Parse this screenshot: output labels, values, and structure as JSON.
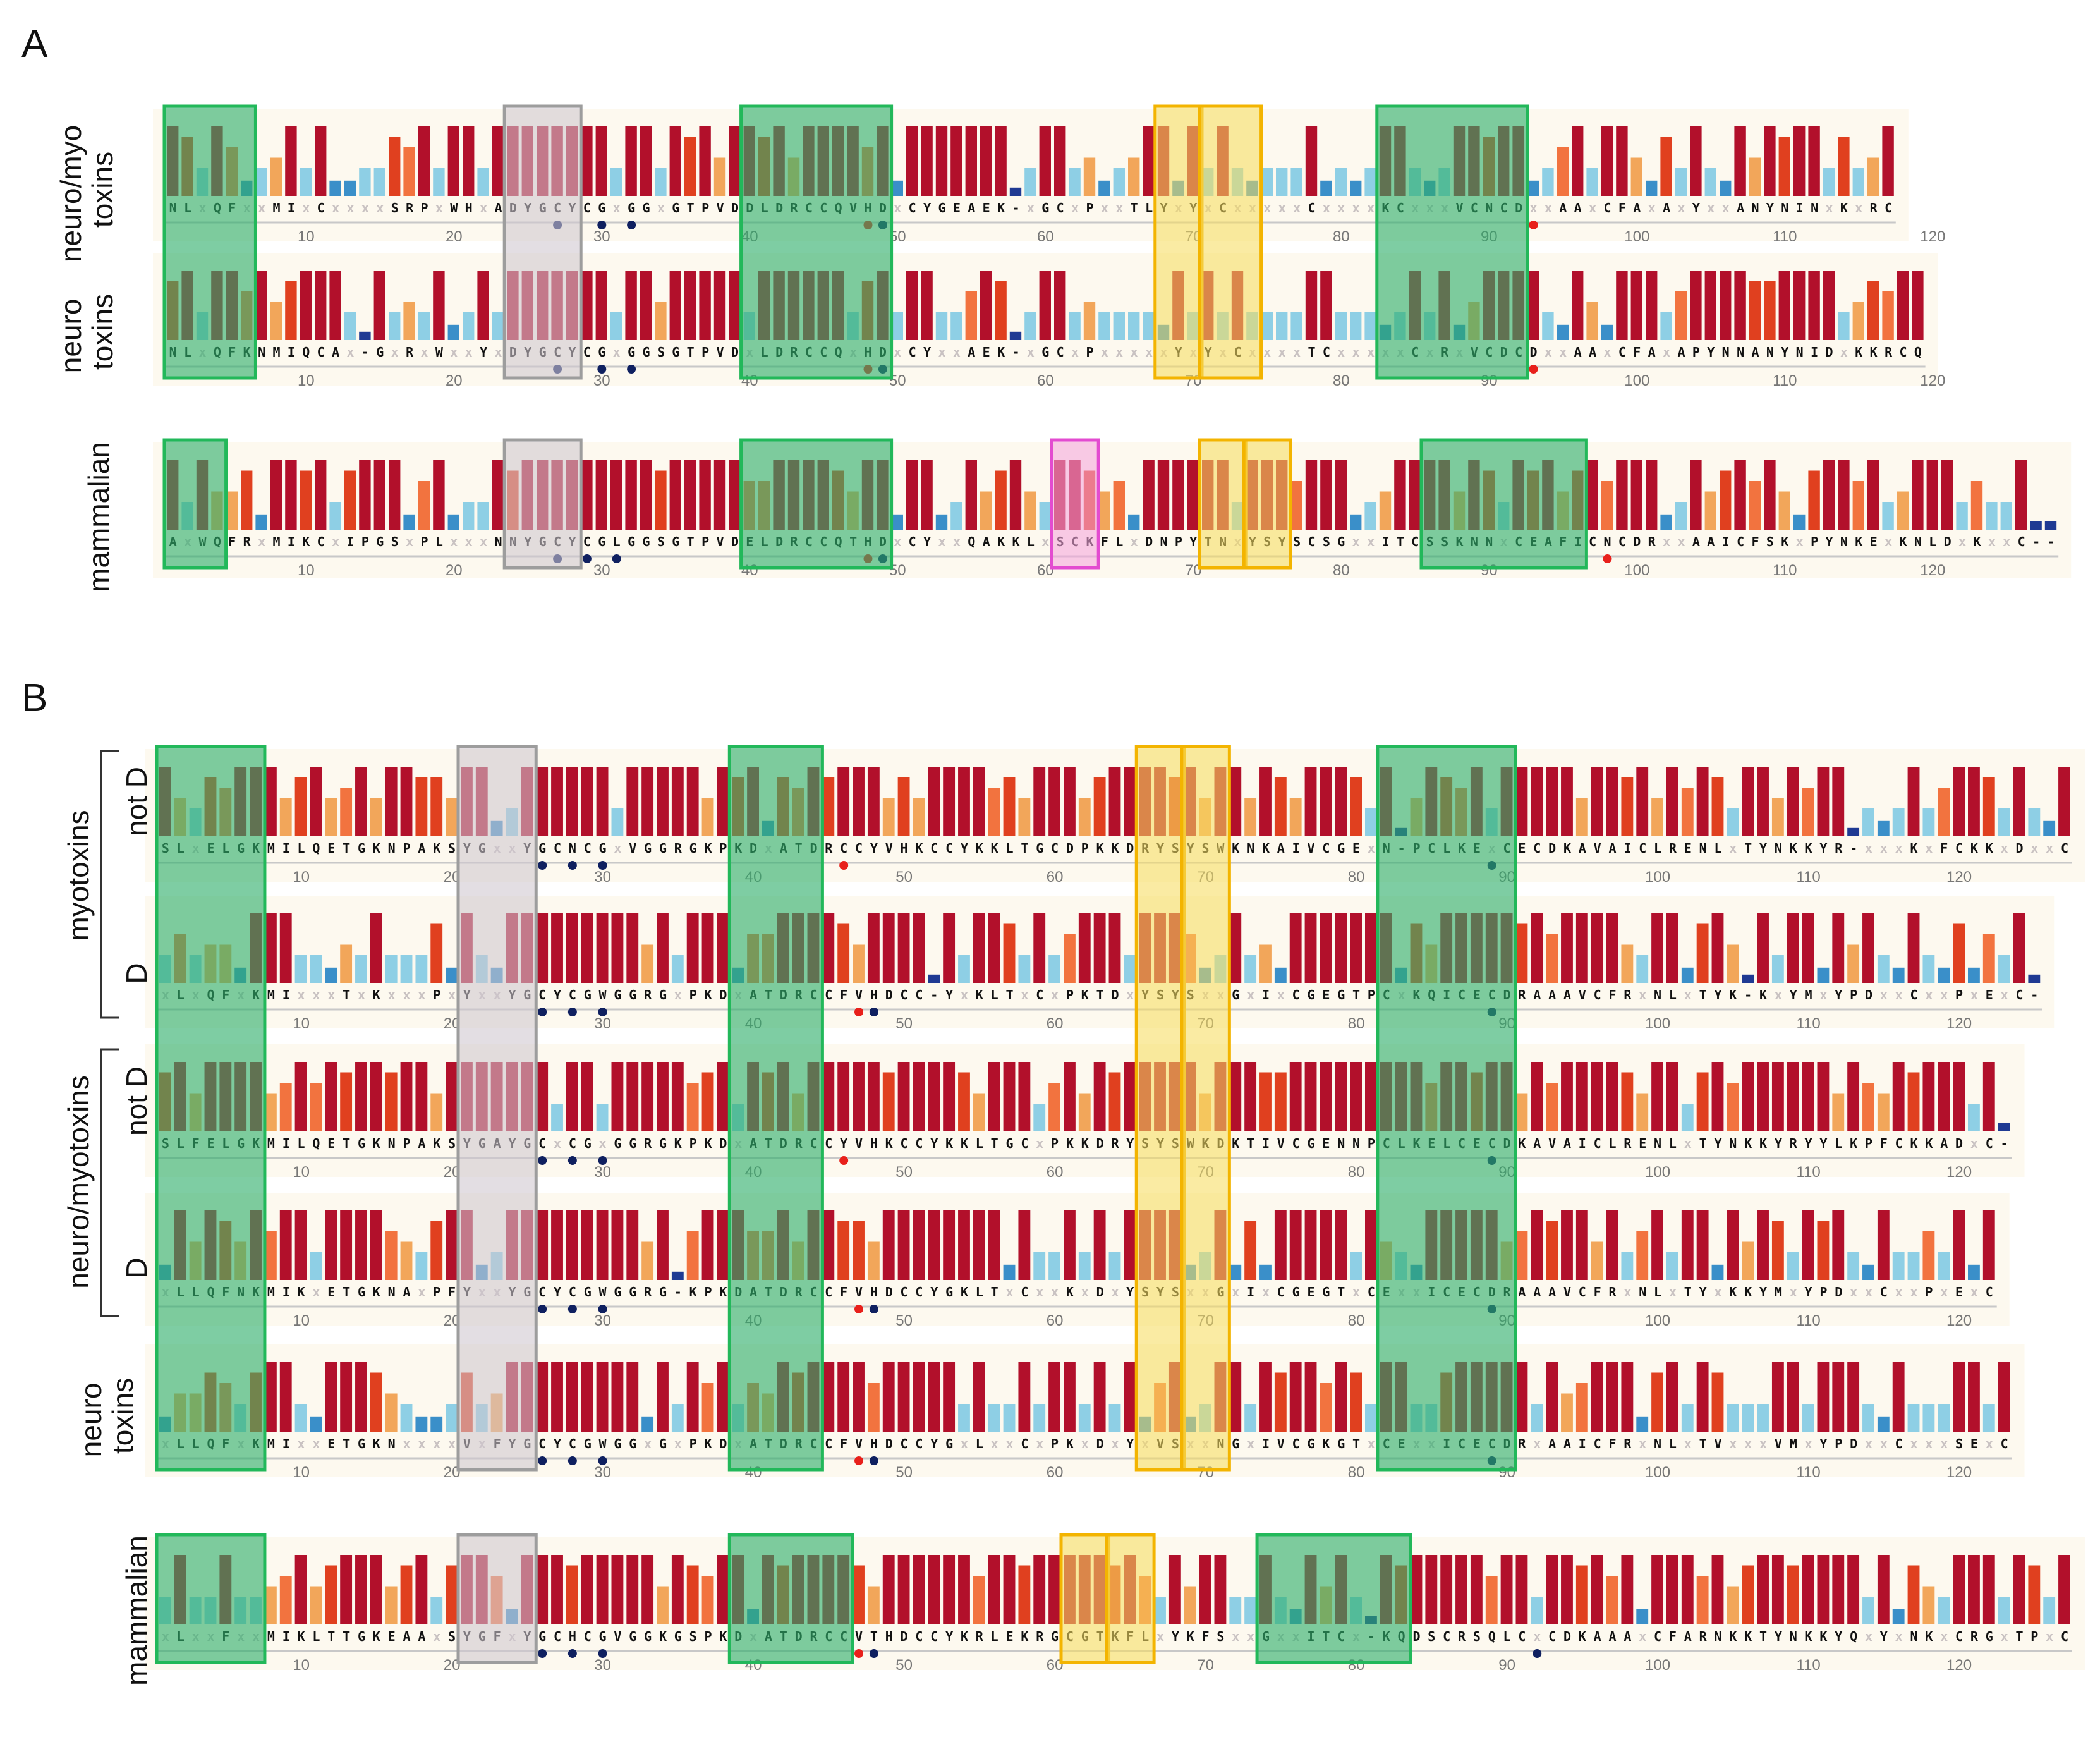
{
  "colors": {
    "c0": "#1f3a93",
    "c1": "#3a8fc9",
    "c2": "#8ecfe5",
    "c3": "#f2a65a",
    "c4": "#f2733f",
    "c5": "#e0401f",
    "c6": "#b2102b",
    "green_fill": "#2fae6b",
    "green_line": "#22b85a",
    "gray_fill": "#cfc6cf",
    "gray_line": "#9d9d9d",
    "yellow_fill": "#f7dd60",
    "yellow_line": "#f3b400",
    "pink_fill": "#f5a6dc",
    "pink_line": "#e34bd0",
    "dot_red": "#e8201b",
    "dot_navy": "#0f2060",
    "strip_bg": "#fdf9ef"
  },
  "panels": [
    {
      "letter": "A",
      "rows": [
        {
          "id": "A1",
          "label": [
            "neuro/myo",
            "toxins"
          ],
          "seq": "NLXQFXXMIXCXXXXSRPXWHXADYGCYCGXGGXGTPVDDLDRCCQVHDXCYGEAEK-XGCXPXXTLYXYXCXXXXXCXXXXKCXXXVCNCDXXAAXCFAXAXYXXANYNINXKXRC",
          "ticks": [
            "10",
            "20",
            "30",
            "40",
            "50",
            "60",
            "70",
            "80",
            "90",
            "100",
            "110",
            "120"
          ],
          "red_dots": [
            48,
            93
          ],
          "navy_dots": [
            27,
            30,
            32,
            49
          ]
        },
        {
          "id": "A2",
          "label": [
            "neuro",
            "toxins"
          ],
          "seq": "NLXQFKNMIQCAX-GXRXWXXYXDYGCYCGXGGSGTPVDXLDRCCQXHDXCYXXAEK-XGCXPXXXXXYXYXCXXXXTCXXXXXCXRXVCDCDXXAAXCFAXAPYNNANYNIDXKKRCQ",
          "ticks": [
            "10",
            "20",
            "30",
            "40",
            "50",
            "60",
            "70",
            "80",
            "90",
            "100",
            "110",
            "120"
          ],
          "red_dots": [
            48,
            93
          ],
          "navy_dots": [
            27,
            30,
            32,
            49
          ]
        },
        {
          "id": "A3",
          "label": [
            "mammalian"
          ],
          "seq": "AXWQFRXMIKCXIPGSXPLXXXNNYGCYCGLGGSGTPVDELDRCCQTHDXCYXXQAKKLXSCKFLXDNPYTNXYSYSCSGXXITCSSKNNXCEAFICNCDRXXAAICFSKXPYNKEXKNLDXKXXC--",
          "ticks": [
            "10",
            "20",
            "30",
            "40",
            "50",
            "60",
            "70",
            "80",
            "90",
            "100",
            "110",
            "120"
          ],
          "red_dots": [
            48,
            98
          ],
          "navy_dots": [
            27,
            29,
            31,
            49
          ]
        }
      ]
    },
    {
      "letter": "B",
      "rows": [
        {
          "id": "B1",
          "label": [
            "not D"
          ],
          "seq": "SLXELGKMILQETGKNPAKSYGXXYGCNCGXVGGRGKPKDXATDRCCYVHKCCYKKLTGCDPKKDRYSYSWKNKAIVCGEXN-PCLKEXCECDKAVAICLRENLXTYNKKYR-XXXKXFCKKXDXXC",
          "ticks": [
            "10",
            "20",
            "30",
            "40",
            "50",
            "60",
            "70",
            "80",
            "90",
            "100",
            "110",
            "120"
          ],
          "red_dots": [
            46
          ],
          "navy_dots": [
            26,
            28,
            30,
            89
          ]
        },
        {
          "id": "B2",
          "label": [
            "D"
          ],
          "seq": "XLXQFXKMIXXXTXKXXXPXYXXYGCYCGWGGRGXPKDXATDRCCFVHDCC-YXKLTXCXPKTDXYSYSXXGXIXCGEGTPCXKQICECDRAAAVCFRXNLXTYK-KXYMXYPDXXCXXPXEXC-",
          "ticks": [
            "10",
            "20",
            "30",
            "40",
            "50",
            "60",
            "70",
            "80",
            "90",
            "100",
            "110",
            "120"
          ],
          "red_dots": [
            47
          ],
          "navy_dots": [
            26,
            28,
            30,
            48,
            89
          ]
        },
        {
          "id": "B3",
          "label": [
            "not D"
          ],
          "seq": "SLFELGKMILQETGKNPAKSYGAYGCXCGXGGRGKPKDXATDRCCYVHKCCYKKLTGCXPKKDRYSYSWKDKTIVCGENNPCLKELCECDKAVAICLRENLXTYNKKYRYYLKPFCKKADXC-",
          "ticks": [
            "10",
            "20",
            "30",
            "40",
            "50",
            "60",
            "70",
            "80",
            "90",
            "100",
            "110",
            "120"
          ],
          "red_dots": [
            46
          ],
          "navy_dots": [
            26,
            28,
            30,
            89
          ]
        },
        {
          "id": "B4",
          "label": [
            "D"
          ],
          "seq": "XLLQFNKMIKXETGKNAXPFYXXYGCYCGWGGRG-KPKDATDRCCFVHDCCYGKLTXCXXKXDXYSYSXXGXIXCGEGTXCEXXICECDRAAAVCFRXNLXTYXKKYMXYPDXXCXXPXEXC",
          "ticks": [
            "10",
            "20",
            "30",
            "40",
            "50",
            "60",
            "70",
            "80",
            "90",
            "100",
            "110",
            "120"
          ],
          "red_dots": [
            47
          ],
          "navy_dots": [
            26,
            28,
            30,
            48,
            89
          ]
        },
        {
          "id": "B5",
          "label": [
            "neuro",
            "toxins"
          ],
          "seq": "XLLQFXKMIXXETGKNXXXXVXFYGCYCGWGGXGXPKDXATDRCCFVHDCCYGXLXXCXPKXDXYXVSXXNGXIVCGKGTXCEXXICECDRXAAICFRXNLXTVXXXVMXYPDXXCXXXSEXC",
          "ticks": [
            "10",
            "20",
            "30",
            "40",
            "50",
            "60",
            "70",
            "80",
            "90",
            "100",
            "110",
            "120"
          ],
          "red_dots": [
            47
          ],
          "navy_dots": [
            26,
            28,
            30,
            48,
            89
          ]
        },
        {
          "id": "B6",
          "label": [
            "mammalian"
          ],
          "seq": "XLXXFXXMIKLTTGKEAAXSYGFXYGCHCGVGGKGSPKDXATDRCCVTHDCCYKRLEKRGCGTKFLXYKFSXXGXXITCX-KQDSCRSQLCXCDKAAAXCFARNKKTYNKKYQXYXNKXCRGXTPXC",
          "ticks": [
            "10",
            "20",
            "30",
            "40",
            "50",
            "60",
            "70",
            "80",
            "90",
            "100",
            "110",
            "120"
          ],
          "red_dots": [
            47
          ],
          "navy_dots": [
            26,
            28,
            30,
            48,
            92
          ]
        }
      ],
      "group_labels": [
        "myotoxins",
        "neuro/myotoxins"
      ]
    }
  ]
}
